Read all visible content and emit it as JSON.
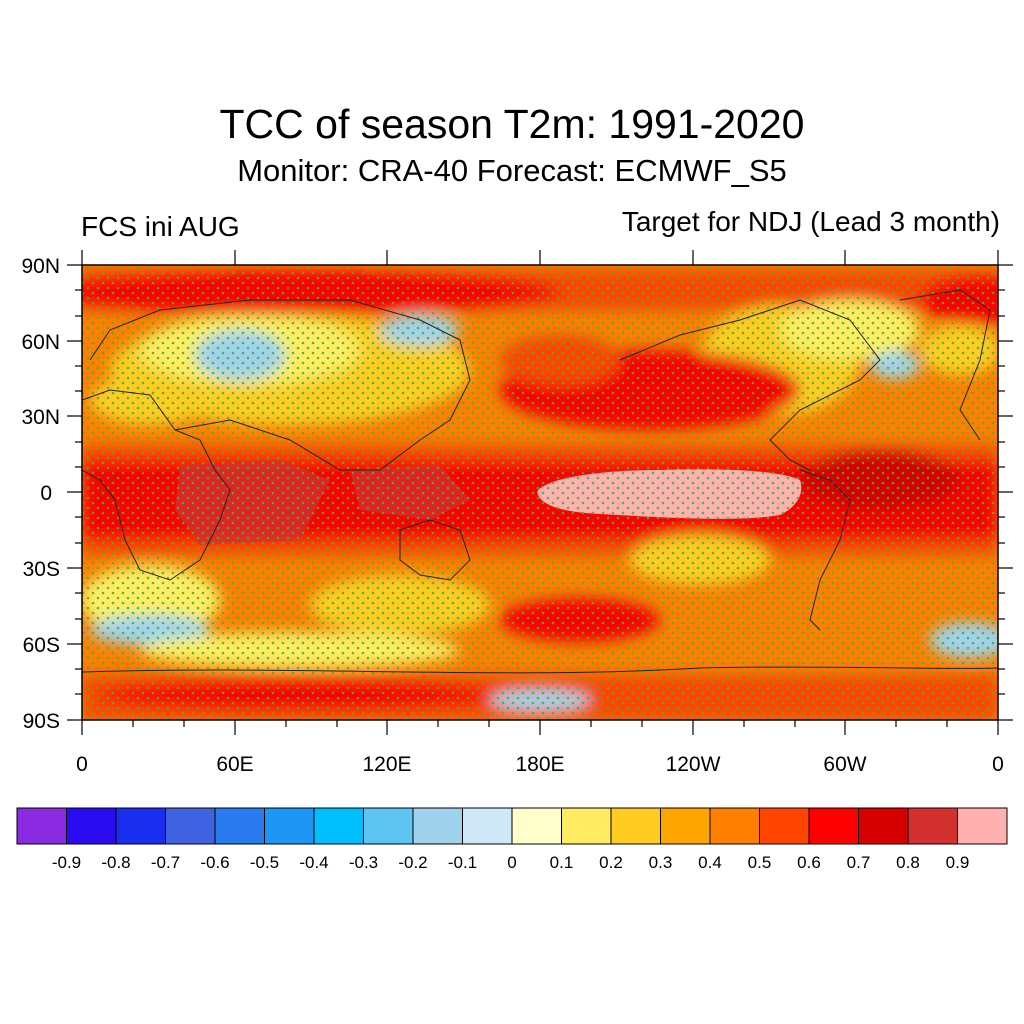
{
  "title": "TCC of season T2m: 1991-2020",
  "subtitle": "Monitor: CRA-40   Forecast: ECMWF_S5",
  "left_label": "FCS ini AUG",
  "right_label": "Target for NDJ (Lead 3 month)",
  "lat_labels": [
    "90N",
    "60N",
    "30N",
    "0",
    "30S",
    "60S",
    "90S"
  ],
  "lon_labels": [
    "0",
    "60E",
    "120E",
    "180E",
    "120W",
    "60W",
    "0"
  ],
  "colorbar": {
    "colors": [
      "#8a2be2",
      "#2a0bf2",
      "#1a2ef0",
      "#3f63e0",
      "#2a7af0",
      "#1e96f5",
      "#00bfff",
      "#5ec4f2",
      "#a0d2ee",
      "#cfe8f8",
      "#ffffcc",
      "#ffec62",
      "#ffcc22",
      "#ffa500",
      "#ff7f00",
      "#ff4500",
      "#ff0000",
      "#d70000",
      "#d43030",
      "#ffb0b0"
    ],
    "labels": [
      "-0.9",
      "-0.8",
      "-0.7",
      "-0.6",
      "-0.5",
      "-0.4",
      "-0.3",
      "-0.2",
      "-0.1",
      "0",
      "0.1",
      "0.2",
      "0.3",
      "0.4",
      "0.5",
      "0.6",
      "0.7",
      "0.8",
      "0.9"
    ]
  },
  "colors": {
    "stipple": "#3cb43c",
    "background_field": "#ff7f00",
    "high_correlation": "#ff0000",
    "low_correlation": "#ffec62",
    "negative_correlation": "#a0d2ee",
    "peak_correlation": "#ffb0b0"
  }
}
